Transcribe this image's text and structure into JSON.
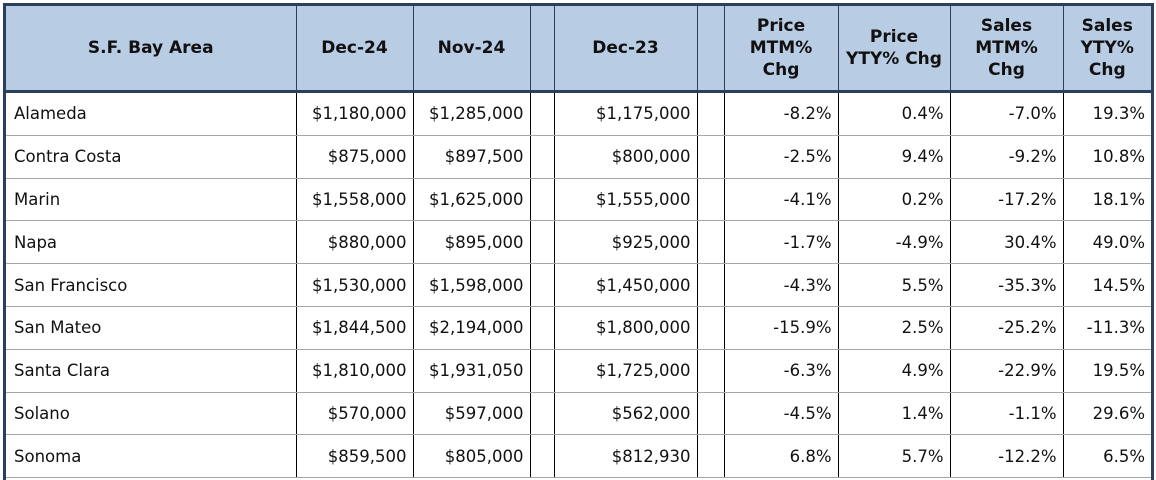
{
  "table": {
    "headers": {
      "region": "S.F. Bay Area",
      "dec24": "Dec-24",
      "nov24": "Nov-24",
      "dec23": "Dec-23",
      "price_mtm": [
        "Price",
        "MTM%",
        "Chg"
      ],
      "price_yty": [
        "Price",
        "YTY% Chg"
      ],
      "sales_mtm": [
        "Sales",
        "MTM%",
        "Chg"
      ],
      "sales_yty": [
        "Sales",
        "YTY% Chg"
      ]
    },
    "rows": [
      {
        "region": "Alameda",
        "dec24": "$1,180,000",
        "nov24": "$1,285,000",
        "dec23": "$1,175,000",
        "price_mtm": "-8.2%",
        "price_yty": "0.4%",
        "sales_mtm": "-7.0%",
        "sales_yty": "19.3%"
      },
      {
        "region": "Contra Costa",
        "dec24": "$875,000",
        "nov24": "$897,500",
        "dec23": "$800,000",
        "price_mtm": "-2.5%",
        "price_yty": "9.4%",
        "sales_mtm": "-9.2%",
        "sales_yty": "10.8%"
      },
      {
        "region": "Marin",
        "dec24": "$1,558,000",
        "nov24": "$1,625,000",
        "dec23": "$1,555,000",
        "price_mtm": "-4.1%",
        "price_yty": "0.2%",
        "sales_mtm": "-17.2%",
        "sales_yty": "18.1%"
      },
      {
        "region": "Napa",
        "dec24": "$880,000",
        "nov24": "$895,000",
        "dec23": "$925,000",
        "price_mtm": "-1.7%",
        "price_yty": "-4.9%",
        "sales_mtm": "30.4%",
        "sales_yty": "49.0%"
      },
      {
        "region": "San Francisco",
        "dec24": "$1,530,000",
        "nov24": "$1,598,000",
        "dec23": "$1,450,000",
        "price_mtm": "-4.3%",
        "price_yty": "5.5%",
        "sales_mtm": "-35.3%",
        "sales_yty": "14.5%"
      },
      {
        "region": "San Mateo",
        "dec24": "$1,844,500",
        "nov24": "$2,194,000",
        "dec23": "$1,800,000",
        "price_mtm": "-15.9%",
        "price_yty": "2.5%",
        "sales_mtm": "-25.2%",
        "sales_yty": "-11.3%"
      },
      {
        "region": "Santa Clara",
        "dec24": "$1,810,000",
        "nov24": "$1,931,050",
        "dec23": "$1,725,000",
        "price_mtm": "-6.3%",
        "price_yty": "4.9%",
        "sales_mtm": "-22.9%",
        "sales_yty": "19.5%"
      },
      {
        "region": "Solano",
        "dec24": "$570,000",
        "nov24": "$597,000",
        "dec23": "$562,000",
        "price_mtm": "-4.5%",
        "price_yty": "1.4%",
        "sales_mtm": "-1.1%",
        "sales_yty": "29.6%"
      },
      {
        "region": "Sonoma",
        "dec24": "$859,500",
        "nov24": "$805,000",
        "dec23": "$812,930",
        "price_mtm": "6.8%",
        "price_yty": "5.7%",
        "sales_mtm": "-12.2%",
        "sales_yty": "6.5%"
      }
    ]
  }
}
